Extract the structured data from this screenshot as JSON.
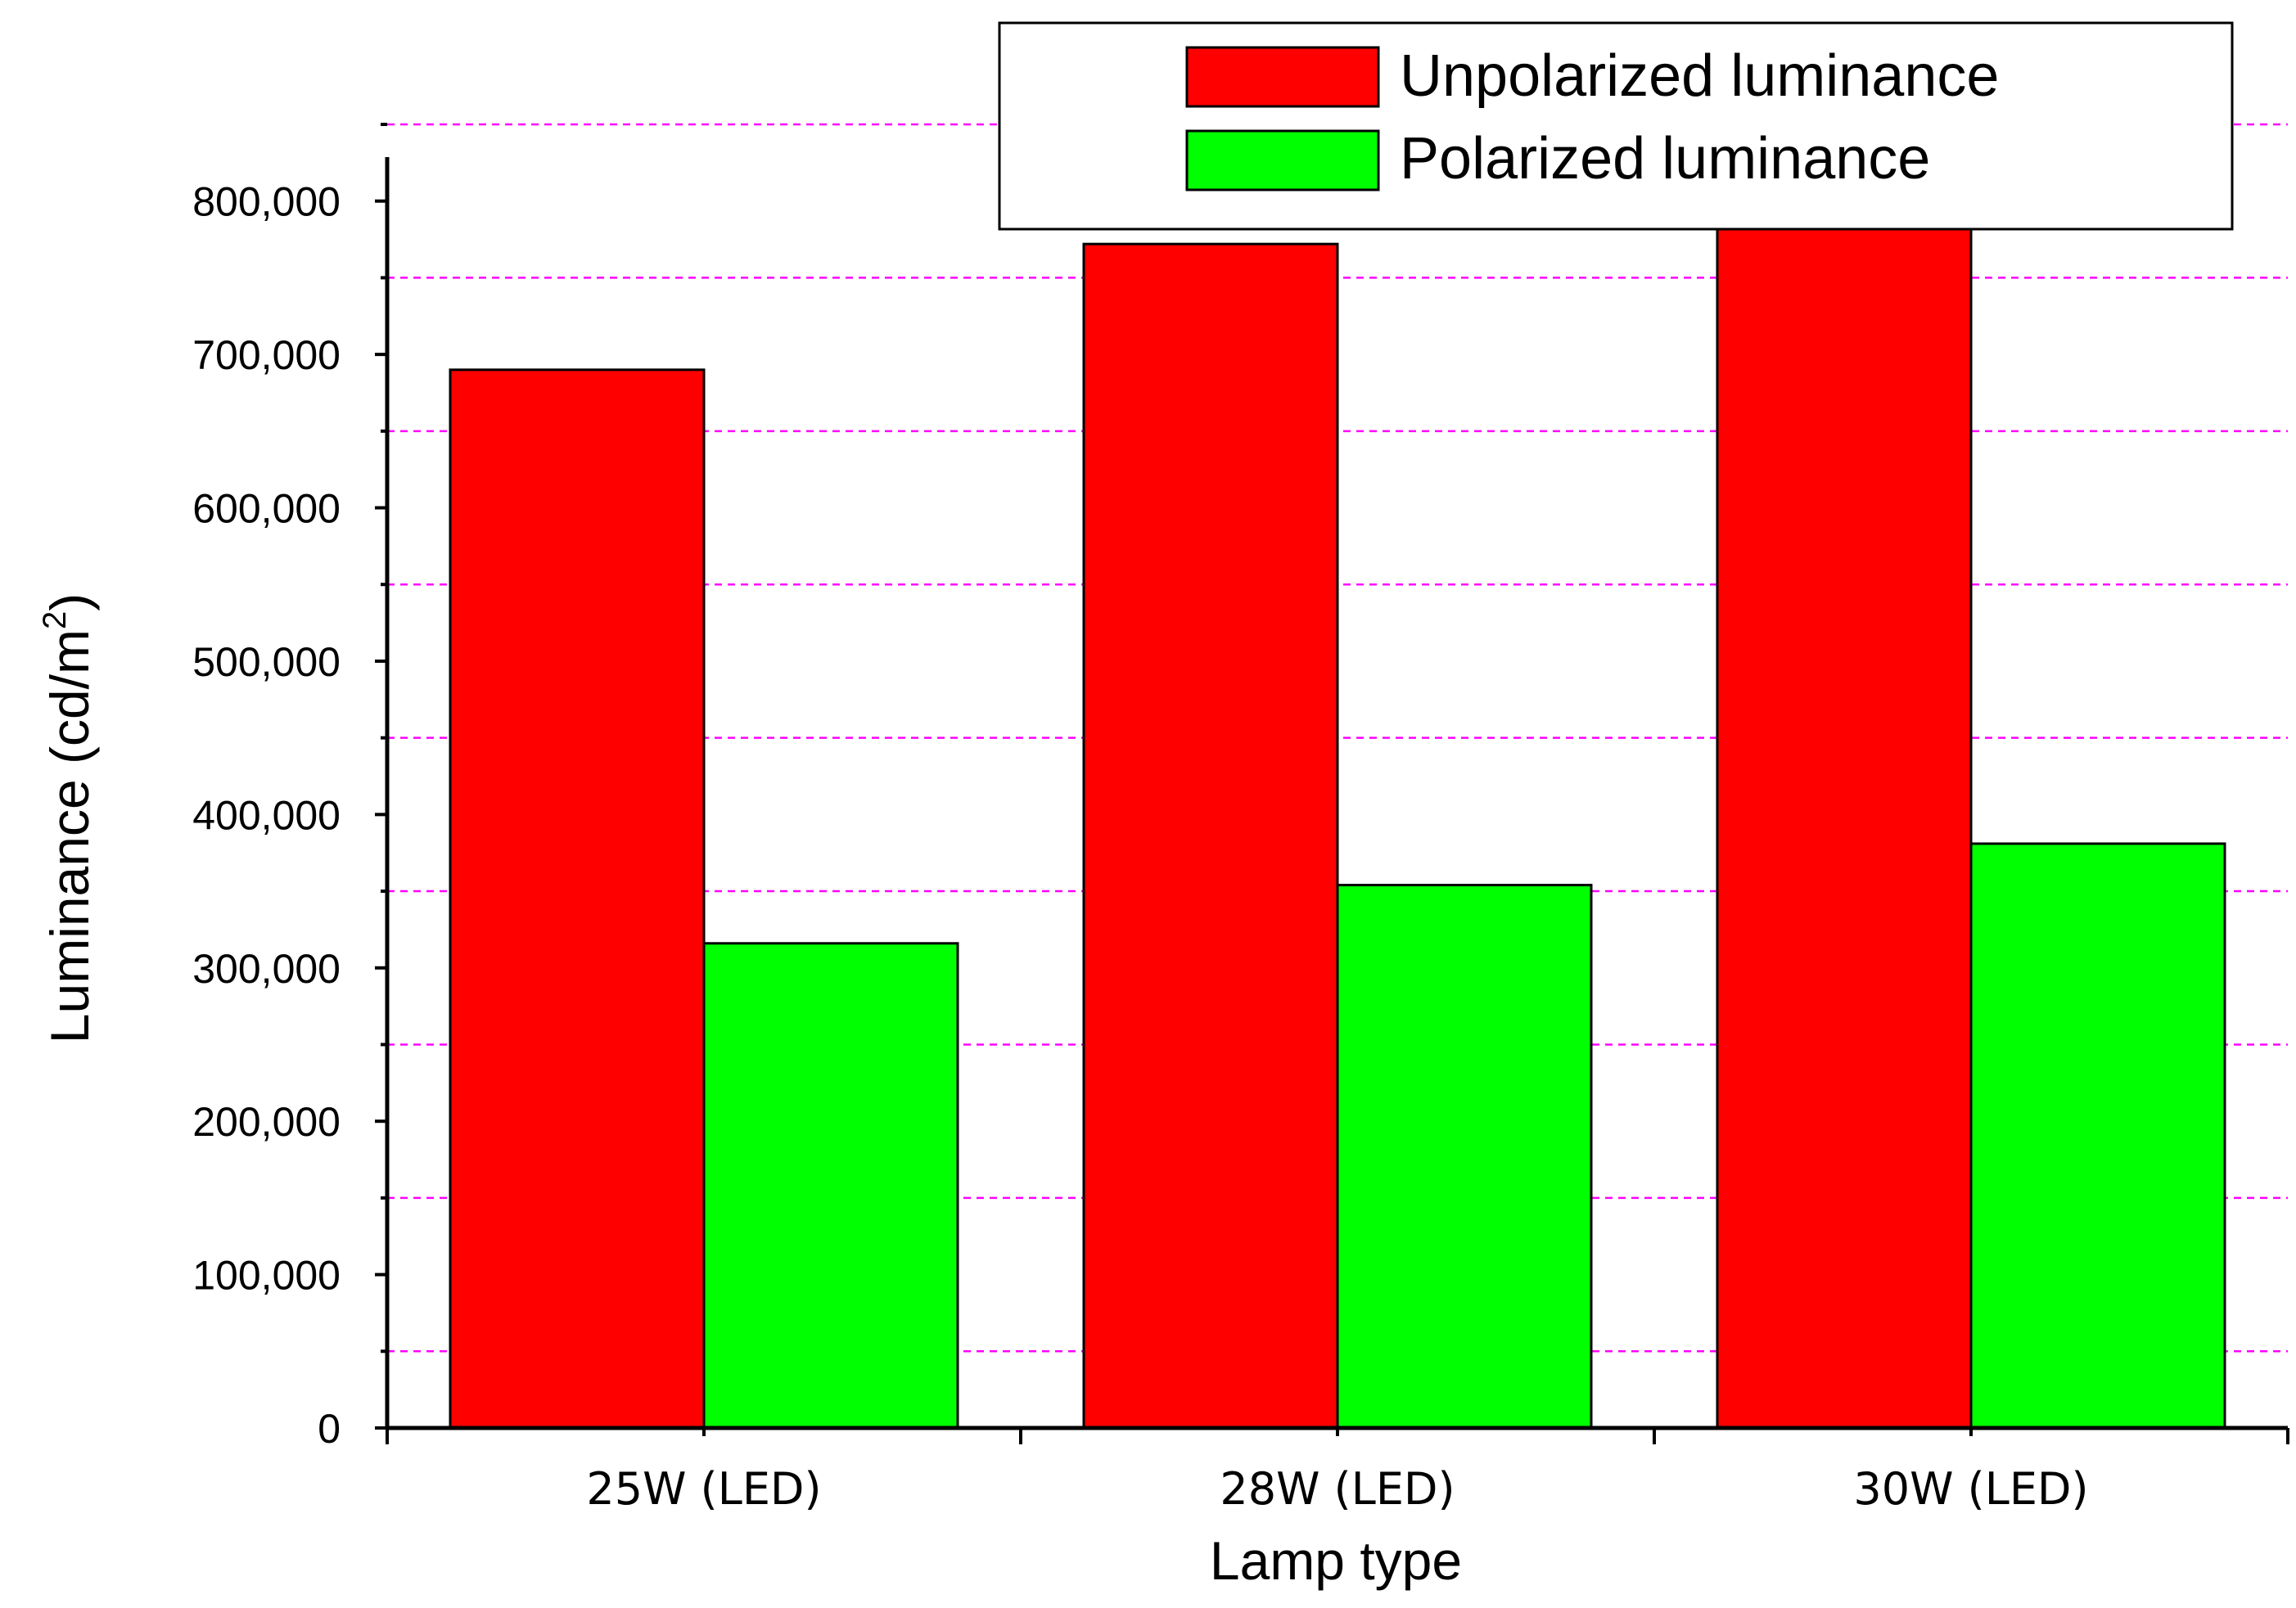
{
  "chart_data": {
    "type": "bar",
    "categories": [
      "25W (LED)",
      "28W (LED)",
      "30W (LED)"
    ],
    "series": [
      {
        "name": "Unpolarized luminance",
        "color": "#ff0000",
        "values": [
          690000,
          772000,
          828000
        ]
      },
      {
        "name": "Polarized luminance",
        "color": "#00ff00",
        "values": [
          316000,
          354000,
          381000
        ]
      }
    ],
    "xlabel": "Lamp type",
    "ylabel": {
      "main": "Luminance (cd/m",
      "superscript": "2",
      "close": ")"
    },
    "ylim": [
      0,
      890000
    ],
    "yticks": [
      0,
      100000,
      200000,
      300000,
      400000,
      500000,
      600000,
      700000,
      800000
    ],
    "ytick_labels": [
      "0",
      "100,000",
      "200,000",
      "300,000",
      "400,000",
      "500,000",
      "600,000",
      "700,000",
      "800,000"
    ],
    "grid": {
      "on": true,
      "style": "dashed",
      "color": "#ff00ff",
      "values": [
        50000,
        150000,
        250000,
        350000,
        450000,
        550000,
        650000,
        750000,
        850000
      ]
    },
    "legend": {
      "position": "top-right"
    }
  }
}
